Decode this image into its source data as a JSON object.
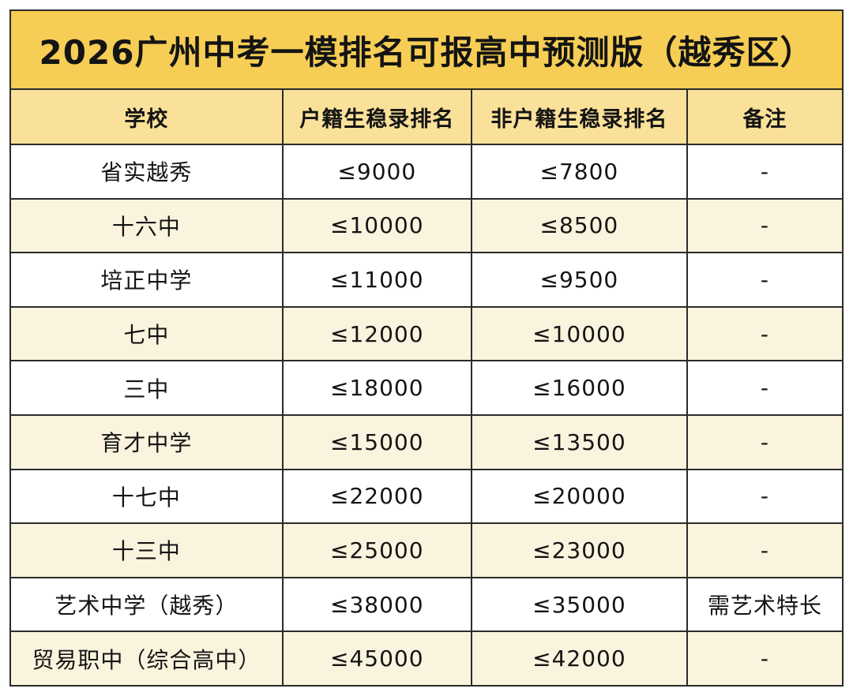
{
  "title": "2026广州中考一模排名可报高中预测版（越秀区）",
  "table": {
    "columns": [
      "学校",
      "户籍生稳录排名",
      "非户籍生稳录排名",
      "备注"
    ],
    "rows": [
      {
        "school": "省实越秀",
        "local_rank": "≤9000",
        "nonlocal_rank": "≤7800",
        "note": "-"
      },
      {
        "school": "十六中",
        "local_rank": "≤10000",
        "nonlocal_rank": "≤8500",
        "note": "-"
      },
      {
        "school": "培正中学",
        "local_rank": "≤11000",
        "nonlocal_rank": "≤9500",
        "note": "-"
      },
      {
        "school": "七中",
        "local_rank": "≤12000",
        "nonlocal_rank": "≤10000",
        "note": "-"
      },
      {
        "school": "三中",
        "local_rank": "≤18000",
        "nonlocal_rank": "≤16000",
        "note": "-"
      },
      {
        "school": "育才中学",
        "local_rank": "≤15000",
        "nonlocal_rank": "≤13500",
        "note": "-"
      },
      {
        "school": "十七中",
        "local_rank": "≤22000",
        "nonlocal_rank": "≤20000",
        "note": "-"
      },
      {
        "school": "十三中",
        "local_rank": "≤25000",
        "nonlocal_rank": "≤23000",
        "note": "-"
      },
      {
        "school": "艺术中学（越秀）",
        "local_rank": "≤38000",
        "nonlocal_rank": "≤35000",
        "note": "需艺术特长"
      },
      {
        "school": "贸易职中（综合高中）",
        "local_rank": "≤45000",
        "nonlocal_rank": "≤42000",
        "note": "-"
      }
    ]
  },
  "colors": {
    "title_bg": "#f6ce55",
    "header_bg": "#fae199",
    "row_alt_bg": "#faf3dd",
    "row_bg": "#ffffff",
    "border": "#2b2b2b",
    "text": "#141414"
  },
  "chart_data": {
    "type": "table",
    "title": "2026广州中考一模排名可报高中预测版（越秀区）",
    "columns": [
      "学校",
      "户籍生稳录排名",
      "非户籍生稳录排名",
      "备注"
    ],
    "rows": [
      [
        "省实越秀",
        "≤9000",
        "≤7800",
        "-"
      ],
      [
        "十六中",
        "≤10000",
        "≤8500",
        "-"
      ],
      [
        "培正中学",
        "≤11000",
        "≤9500",
        "-"
      ],
      [
        "七中",
        "≤12000",
        "≤10000",
        "-"
      ],
      [
        "三中",
        "≤18000",
        "≤16000",
        "-"
      ],
      [
        "育才中学",
        "≤15000",
        "≤13500",
        "-"
      ],
      [
        "十七中",
        "≤22000",
        "≤20000",
        "-"
      ],
      [
        "十三中",
        "≤25000",
        "≤23000",
        "-"
      ],
      [
        "艺术中学（越秀）",
        "≤38000",
        "≤35000",
        "需艺术特长"
      ],
      [
        "贸易职中（综合高中）",
        "≤45000",
        "≤42000",
        "-"
      ]
    ]
  }
}
